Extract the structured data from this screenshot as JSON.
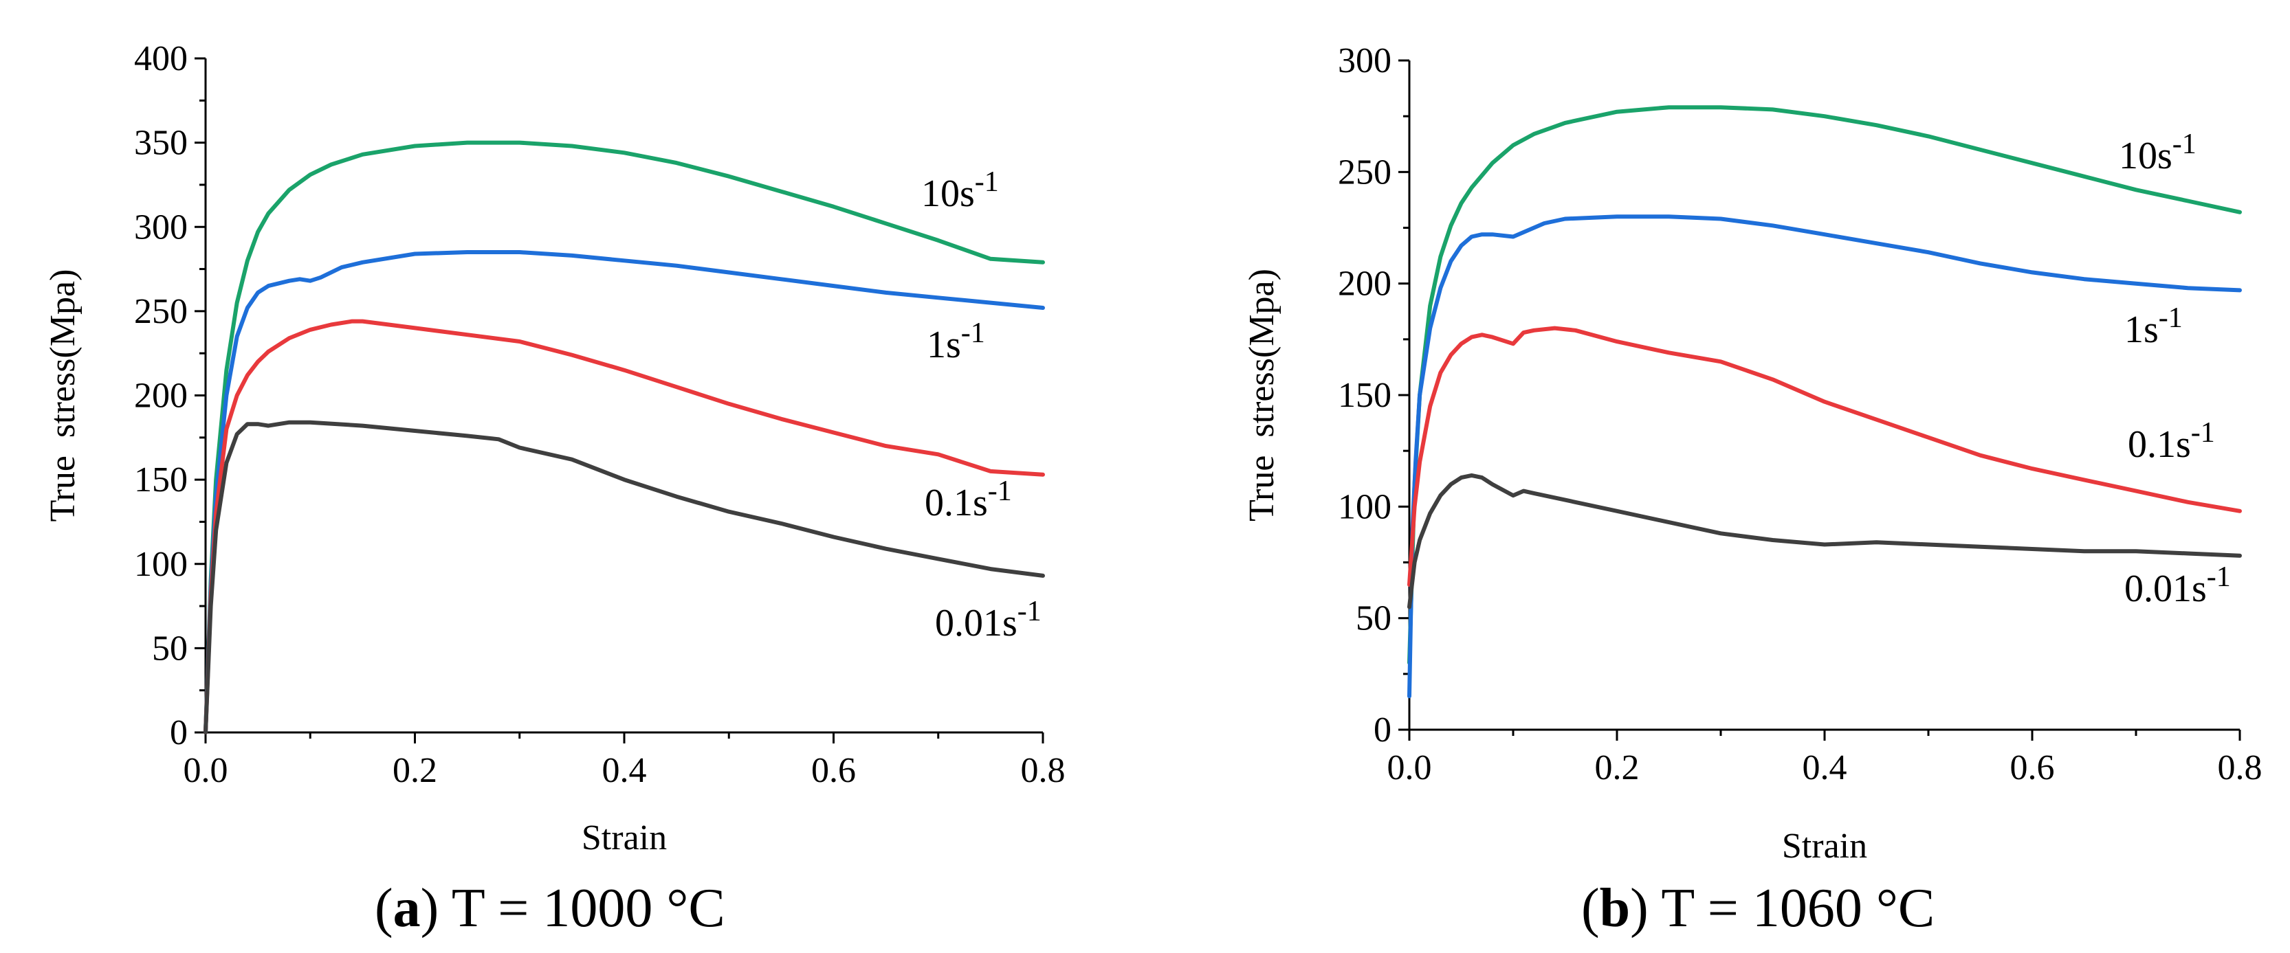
{
  "chart_data": [
    {
      "type": "line",
      "panel": "a",
      "caption_letter": "a",
      "caption_text": " T = 1000 °C",
      "xlabel": "Strain",
      "ylabel": "True  stress(Mpa)",
      "xlim": [
        0,
        0.8
      ],
      "ylim": [
        0,
        400
      ],
      "xticks": [
        "0.0",
        "0.2",
        "0.4",
        "0.6",
        "0.8"
      ],
      "yticks": [
        "0",
        "50",
        "100",
        "150",
        "200",
        "250",
        "300",
        "350",
        "400"
      ],
      "series": [
        {
          "name": "10s-1",
          "base": "10s",
          "sup": "-1",
          "color": "#1aa36a",
          "x": [
            0,
            0.005,
            0.01,
            0.02,
            0.03,
            0.04,
            0.05,
            0.06,
            0.08,
            0.1,
            0.12,
            0.15,
            0.2,
            0.25,
            0.3,
            0.35,
            0.4,
            0.45,
            0.5,
            0.55,
            0.6,
            0.65,
            0.7,
            0.75,
            0.8
          ],
          "y": [
            0,
            90,
            150,
            215,
            255,
            280,
            297,
            308,
            322,
            331,
            337,
            343,
            348,
            350,
            350,
            348,
            344,
            338,
            330,
            321,
            312,
            302,
            292,
            281,
            279
          ]
        },
        {
          "name": "1s-1",
          "base": "1s",
          "sup": "-1",
          "color": "#1e6fd9",
          "x": [
            0,
            0.005,
            0.01,
            0.02,
            0.03,
            0.04,
            0.05,
            0.06,
            0.08,
            0.09,
            0.1,
            0.11,
            0.13,
            0.15,
            0.2,
            0.25,
            0.3,
            0.35,
            0.4,
            0.45,
            0.5,
            0.55,
            0.6,
            0.65,
            0.7,
            0.75,
            0.8
          ],
          "y": [
            0,
            85,
            140,
            200,
            235,
            252,
            261,
            265,
            268,
            269,
            268,
            270,
            276,
            279,
            284,
            285,
            285,
            283,
            280,
            277,
            273,
            269,
            265,
            261,
            258,
            255,
            252
          ]
        },
        {
          "name": "0.1s-1",
          "base": "0.1s",
          "sup": "-1",
          "color": "#e8393c",
          "x": [
            0,
            0.005,
            0.01,
            0.02,
            0.03,
            0.04,
            0.05,
            0.06,
            0.08,
            0.1,
            0.12,
            0.14,
            0.15,
            0.2,
            0.25,
            0.3,
            0.35,
            0.4,
            0.45,
            0.5,
            0.55,
            0.6,
            0.65,
            0.7,
            0.75,
            0.8
          ],
          "y": [
            0,
            80,
            130,
            180,
            200,
            212,
            220,
            226,
            234,
            239,
            242,
            244,
            244,
            240,
            236,
            232,
            224,
            215,
            205,
            195,
            186,
            178,
            170,
            165,
            155,
            153
          ]
        },
        {
          "name": "0.01s-1",
          "base": "0.01s",
          "sup": "-1",
          "color": "#3f3f3f",
          "x": [
            0,
            0.005,
            0.01,
            0.02,
            0.03,
            0.04,
            0.05,
            0.06,
            0.08,
            0.1,
            0.15,
            0.2,
            0.25,
            0.28,
            0.3,
            0.35,
            0.4,
            0.45,
            0.5,
            0.55,
            0.6,
            0.65,
            0.7,
            0.75,
            0.8
          ],
          "y": [
            0,
            75,
            120,
            160,
            177,
            183,
            183,
            182,
            184,
            184,
            182,
            179,
            176,
            174,
            169,
            162,
            150,
            140,
            131,
            124,
            116,
            109,
            103,
            97,
            93
          ]
        }
      ]
    },
    {
      "type": "line",
      "panel": "b",
      "caption_letter": "b",
      "caption_text": " T = 1060 °C",
      "xlabel": "Strain",
      "ylabel": "True  stress(Mpa)",
      "xlim": [
        0,
        0.8
      ],
      "ylim": [
        0,
        300
      ],
      "xticks": [
        "0.0",
        "0.2",
        "0.4",
        "0.6",
        "0.8"
      ],
      "yticks": [
        "0",
        "50",
        "100",
        "150",
        "200",
        "250",
        "300"
      ],
      "series": [
        {
          "name": "10s-1",
          "base": "10s",
          "sup": "-1",
          "color": "#1aa36a",
          "x": [
            0,
            0.005,
            0.01,
            0.02,
            0.03,
            0.04,
            0.05,
            0.06,
            0.08,
            0.1,
            0.12,
            0.15,
            0.2,
            0.25,
            0.3,
            0.35,
            0.4,
            0.45,
            0.5,
            0.55,
            0.6,
            0.65,
            0.7,
            0.75,
            0.8
          ],
          "y": [
            30,
            110,
            150,
            190,
            212,
            226,
            236,
            243,
            254,
            262,
            267,
            272,
            277,
            279,
            279,
            278,
            275,
            271,
            266,
            260,
            254,
            248,
            242,
            237,
            232
          ]
        },
        {
          "name": "1s-1",
          "base": "1s",
          "sup": "-1",
          "color": "#1e6fd9",
          "x": [
            0,
            0.003,
            0.006,
            0.01,
            0.02,
            0.03,
            0.04,
            0.05,
            0.06,
            0.07,
            0.08,
            0.1,
            0.11,
            0.13,
            0.15,
            0.2,
            0.25,
            0.3,
            0.35,
            0.4,
            0.45,
            0.5,
            0.55,
            0.6,
            0.65,
            0.7,
            0.75,
            0.8
          ],
          "y": [
            15,
            90,
            120,
            150,
            180,
            198,
            210,
            217,
            221,
            222,
            222,
            221,
            223,
            227,
            229,
            230,
            230,
            229,
            226,
            222,
            218,
            214,
            209,
            205,
            202,
            200,
            198,
            197
          ]
        },
        {
          "name": "0.1s-1",
          "base": "0.1s",
          "sup": "-1",
          "color": "#e8393c",
          "x": [
            0,
            0.005,
            0.01,
            0.02,
            0.03,
            0.04,
            0.05,
            0.06,
            0.07,
            0.08,
            0.1,
            0.11,
            0.12,
            0.14,
            0.16,
            0.2,
            0.25,
            0.3,
            0.35,
            0.4,
            0.45,
            0.5,
            0.55,
            0.6,
            0.65,
            0.7,
            0.75,
            0.8
          ],
          "y": [
            65,
            100,
            120,
            145,
            160,
            168,
            173,
            176,
            177,
            176,
            173,
            178,
            179,
            180,
            179,
            174,
            169,
            165,
            157,
            147,
            139,
            131,
            123,
            117,
            112,
            107,
            102,
            98
          ]
        },
        {
          "name": "0.01s-1",
          "base": "0.01s",
          "sup": "-1",
          "color": "#3f3f3f",
          "x": [
            0,
            0.005,
            0.01,
            0.02,
            0.03,
            0.04,
            0.05,
            0.06,
            0.07,
            0.08,
            0.1,
            0.11,
            0.12,
            0.15,
            0.2,
            0.25,
            0.3,
            0.35,
            0.4,
            0.45,
            0.5,
            0.55,
            0.6,
            0.65,
            0.7,
            0.75,
            0.8
          ],
          "y": [
            55,
            75,
            85,
            97,
            105,
            110,
            113,
            114,
            113,
            110,
            105,
            107,
            106,
            103,
            98,
            93,
            88,
            85,
            83,
            84,
            83,
            82,
            81,
            80,
            80,
            79,
            78
          ]
        }
      ]
    }
  ]
}
